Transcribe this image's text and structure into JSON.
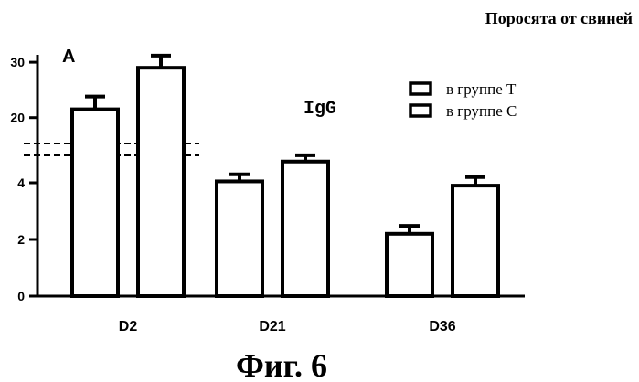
{
  "chart_data": {
    "type": "bar",
    "header": "Поросята от свиней",
    "panel_label": "A",
    "annotation": "IgG",
    "figure_caption": "Фиг. 6",
    "categories": [
      "D2",
      "D21",
      "D36"
    ],
    "series": [
      {
        "name": "в группе Т",
        "values": [
          21.5,
          4.05,
          2.2
        ],
        "errors": [
          2.3,
          0.25,
          0.28
        ]
      },
      {
        "name": "в группе С",
        "values": [
          29.0,
          4.75,
          3.9
        ],
        "errors": [
          2.2,
          0.22,
          0.3
        ]
      }
    ],
    "axis_break": true,
    "y_lower": {
      "ylim": [
        0,
        5
      ],
      "ticks": [
        0,
        2,
        4
      ]
    },
    "y_upper": {
      "ylim": [
        15,
        32
      ],
      "ticks": [
        20,
        30
      ]
    },
    "legend_position": "top-right",
    "grid": false
  }
}
